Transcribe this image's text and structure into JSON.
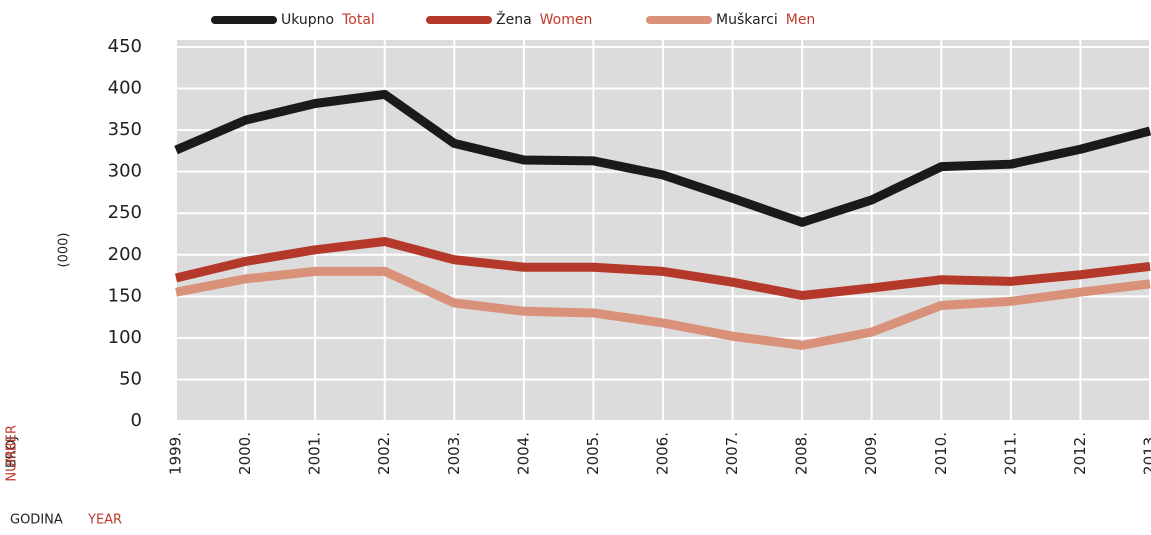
{
  "chart_data": {
    "type": "line",
    "ylabel": "(000)",
    "ylabel_local": "BROJ",
    "ylabel_en": "NUMBER",
    "xlabel_local": "GODINA",
    "xlabel_en": "YEAR",
    "categories": [
      "1999.",
      "2000.",
      "2001.",
      "2002.",
      "2003.",
      "2004.",
      "2005.",
      "2006.",
      "2007.",
      "2008.",
      "2009.",
      "2010.",
      "2011.",
      "2012.",
      "2013."
    ],
    "series": [
      {
        "name": "Ukupno",
        "name_en": "Total",
        "color": "#1a1a1a",
        "values": [
          326,
          362,
          382,
          393,
          334,
          314,
          313,
          296,
          268,
          239,
          266,
          306,
          309,
          327,
          349
        ]
      },
      {
        "name": "Žena",
        "name_en": "Women",
        "color": "#b5392a",
        "values": [
          172,
          192,
          206,
          216,
          194,
          185,
          185,
          180,
          167,
          151,
          160,
          170,
          168,
          176,
          186
        ]
      },
      {
        "name": "Muškarci",
        "name_en": "Men",
        "color": "#d9917a",
        "values": [
          155,
          171,
          180,
          180,
          142,
          132,
          130,
          118,
          102,
          91,
          107,
          139,
          144,
          155,
          165
        ]
      }
    ],
    "ylim": [
      0,
      450
    ],
    "yticks": [
      0,
      50,
      100,
      150,
      200,
      250,
      300,
      350,
      400,
      450
    ],
    "grid": true,
    "legend": "top"
  }
}
